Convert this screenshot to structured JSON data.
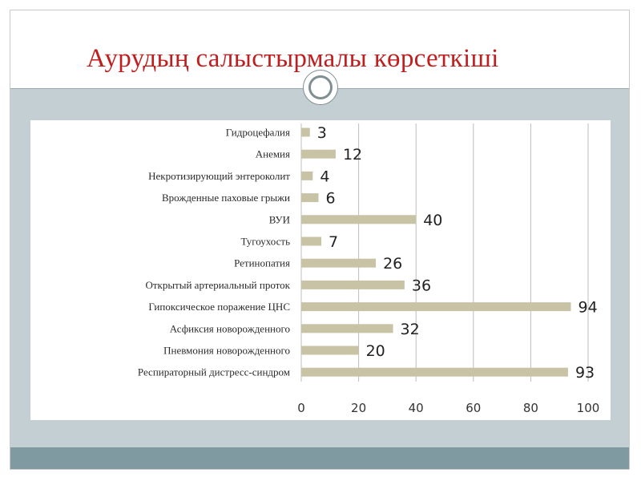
{
  "slide": {
    "title": "Аурудың салыстырмалы көрсеткіші"
  },
  "colors": {
    "title": "#c01e1e",
    "bar": "#c9c3a6",
    "content_band": "#c3cfd3",
    "bottom_band": "#7f9aa0",
    "grid": "#bdbdbd"
  },
  "chart_data": {
    "type": "bar",
    "orientation": "horizontal",
    "categories": [
      "Гидроцефалия",
      "Анемия",
      "Некротизирующий энтероколит",
      "Врожденные паховые грыжи",
      "ВУИ",
      "Тугоухость",
      "Ретинопатия",
      "Открытый артериальный проток",
      "Гипоксическое поражение ЦНС",
      "Асфиксия новорожденного",
      "Пневмония новорожденного",
      "Респираторный дистресс-синдром"
    ],
    "values": [
      3,
      12,
      4,
      6,
      40,
      7,
      26,
      36,
      94,
      32,
      20,
      93
    ],
    "value_labels": [
      "3",
      "12",
      "4",
      "6",
      "40",
      "7",
      "26",
      "36",
      "94",
      "32",
      "20",
      "93"
    ],
    "xlim": [
      0,
      100
    ],
    "xticks": [
      0,
      20,
      40,
      60,
      80,
      100
    ],
    "xtick_labels": [
      "0",
      "20",
      "40",
      "60",
      "80",
      "100"
    ],
    "grid": "vertical",
    "title": "",
    "xlabel": "",
    "ylabel": ""
  }
}
